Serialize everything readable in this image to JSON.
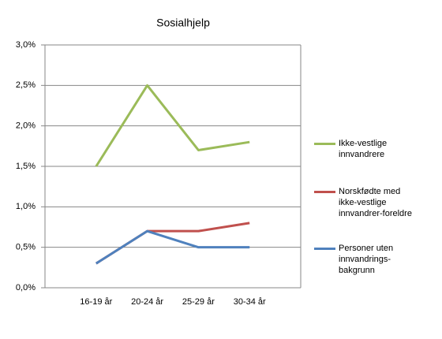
{
  "chart_data": {
    "type": "line",
    "title": "Sosialhjelp",
    "categories": [
      "16-19 år",
      "20-24 år",
      "25-29 år",
      "30-34 år"
    ],
    "series": [
      {
        "name": "Ikke-vestlige innvandrere",
        "color": "#9bbb59",
        "values": [
          1.5,
          2.5,
          1.7,
          1.8
        ]
      },
      {
        "name": "Norskfødte med ikke-vestlige innvandrer-foreldre",
        "color": "#c0504d",
        "values": [
          0.3,
          0.7,
          0.7,
          0.8
        ]
      },
      {
        "name": "Personer uten innvandrings-bakgrunn",
        "color": "#4f81bd",
        "values": [
          0.3,
          0.7,
          0.5,
          0.5
        ]
      }
    ],
    "ylim": [
      0,
      3
    ],
    "yticks": [
      {
        "value": 0,
        "label": "0,0%"
      },
      {
        "value": 0.5,
        "label": "0,5%"
      },
      {
        "value": 1,
        "label": "1,0%"
      },
      {
        "value": 1.5,
        "label": "1,5%"
      },
      {
        "value": 2,
        "label": "2,0%"
      },
      {
        "value": 2.5,
        "label": "2,5%"
      },
      {
        "value": 3,
        "label": "3,0%"
      }
    ],
    "grid": true,
    "legend": "right"
  }
}
